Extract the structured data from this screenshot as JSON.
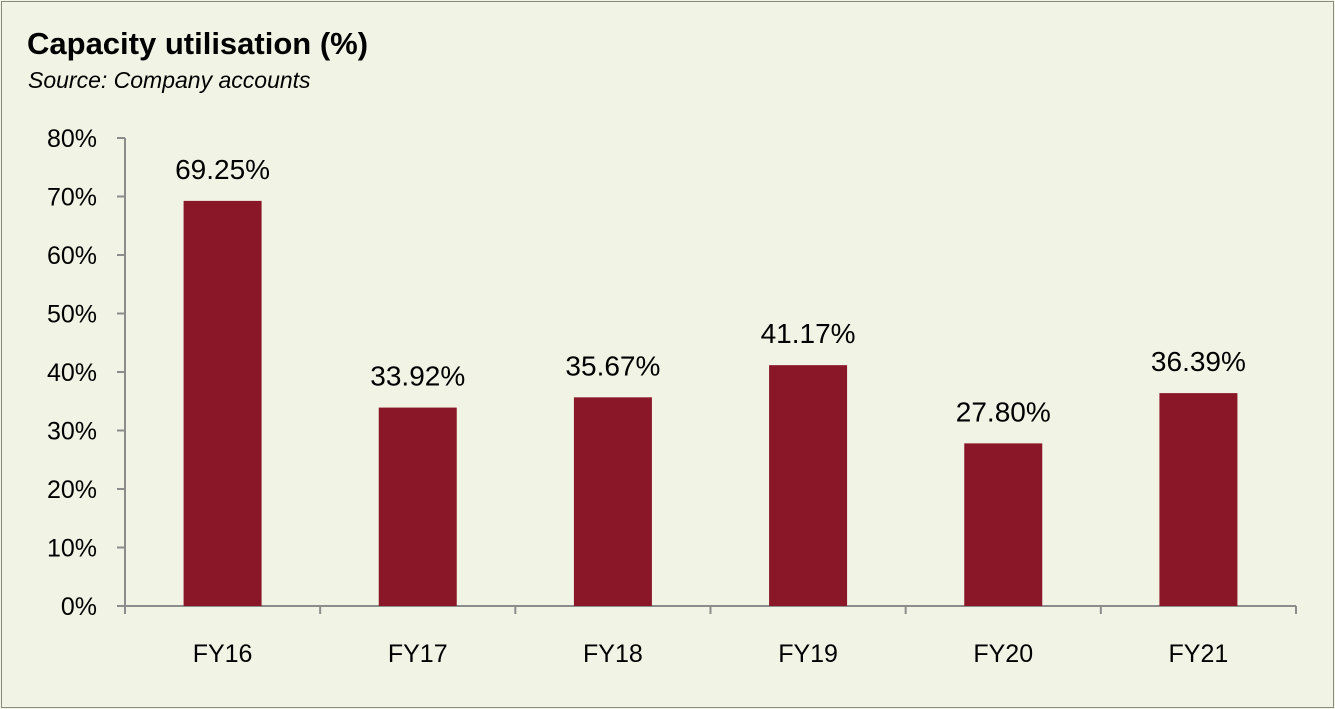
{
  "chart_data": {
    "type": "bar",
    "title": "Capacity utilisation (%)",
    "subtitle": "Source: Company accounts",
    "categories": [
      "FY16",
      "FY17",
      "FY18",
      "FY19",
      "FY20",
      "FY21"
    ],
    "values": [
      69.25,
      33.92,
      35.67,
      41.17,
      27.8,
      36.39
    ],
    "data_labels": [
      "69.25%",
      "33.92%",
      "35.67%",
      "41.17%",
      "27.80%",
      "36.39%"
    ],
    "yticks": [
      "0%",
      "10%",
      "20%",
      "30%",
      "40%",
      "50%",
      "60%",
      "70%",
      "80%"
    ],
    "ylim": [
      0,
      80
    ],
    "xlabel": "",
    "ylabel": "",
    "grid": false,
    "legend": "none",
    "bar_color": "#8a1728"
  }
}
